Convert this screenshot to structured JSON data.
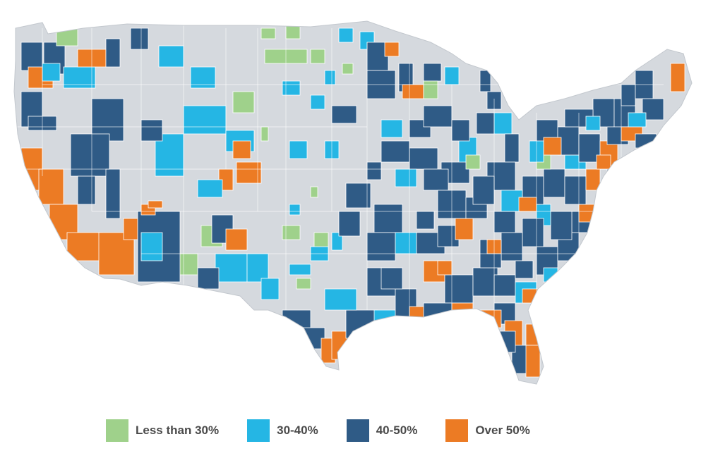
{
  "map": {
    "base_color": "#d5d9de",
    "border_color": "#ffffff",
    "dark_color": "#2f5b86"
  },
  "legend": {
    "items": [
      {
        "label": "Less than 30%",
        "color": "#9fd18b"
      },
      {
        "label": "30-40%",
        "color": "#25b6e4"
      },
      {
        "label": "40-50%",
        "color": "#2f5b86"
      },
      {
        "label": "Over 50%",
        "color": "#ec7b24"
      }
    ]
  }
}
